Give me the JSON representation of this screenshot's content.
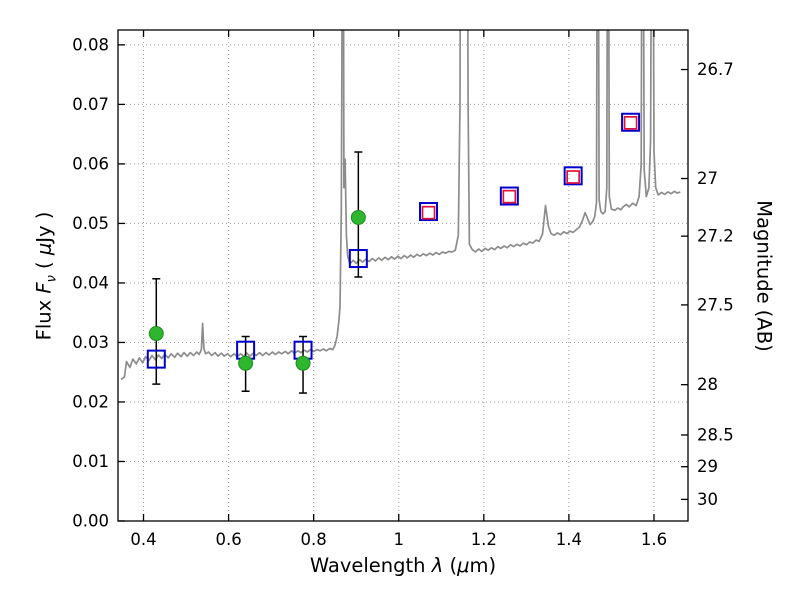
{
  "figure": {
    "background": "#ffffff",
    "xlabel": {
      "pre": "Wavelength ",
      "lambda": "λ",
      "mid": " (",
      "mu": "μ",
      "post": "m)"
    },
    "ylabel_left": {
      "pre": "Flux ",
      "f": "F",
      "sub": "ν",
      "mid": " ( ",
      "mu": "μ",
      "post": "Jy )"
    },
    "ylabel_right": "Magnitude (AB)"
  },
  "axes": {
    "xlim": [
      0.34,
      1.68
    ],
    "ylim": [
      0.0,
      0.0825
    ],
    "xticks": [
      0.4,
      0.6,
      0.8,
      1.0,
      1.2,
      1.4,
      1.6
    ],
    "xtick_labels": [
      "0.4",
      "0.6",
      "0.8",
      "1",
      "1.2",
      "1.4",
      "1.6"
    ],
    "yticks": [
      0.0,
      0.01,
      0.02,
      0.03,
      0.04,
      0.05,
      0.06,
      0.07,
      0.08
    ],
    "ytick_labels": [
      "0.00",
      "0.01",
      "0.02",
      "0.03",
      "0.04",
      "0.05",
      "0.06",
      "0.07",
      "0.08"
    ],
    "right_axis": {
      "tick_mags": [
        26.7,
        27,
        27.2,
        27.5,
        28,
        28.5,
        29,
        30
      ],
      "tick_labels": [
        "26.7",
        "27",
        "27.2",
        "27.5",
        "28",
        "28.5",
        "29",
        "30"
      ],
      "ab_zeropoint_ujy": 23.9
    },
    "grid": {
      "color": "#9a9a9a",
      "style": "dotted"
    },
    "frame_color": "#000000"
  },
  "chart_data": {
    "type": "line",
    "title": "",
    "xlabel": "Wavelength λ (μm)",
    "ylabel": "Flux Fν ( μJy )",
    "ylabel_right": "Magnitude (AB)",
    "xlim": [
      0.34,
      1.68
    ],
    "ylim": [
      0.0,
      0.0825
    ],
    "grid": true,
    "legend": false,
    "series": [
      {
        "name": "model spectrum",
        "type": "line",
        "color": "#8c8c8c",
        "points": [
          [
            0.347,
            0.0238
          ],
          [
            0.355,
            0.0242
          ],
          [
            0.36,
            0.0268
          ],
          [
            0.368,
            0.0258
          ],
          [
            0.375,
            0.0272
          ],
          [
            0.383,
            0.0264
          ],
          [
            0.39,
            0.0274
          ],
          [
            0.398,
            0.0266
          ],
          [
            0.405,
            0.0276
          ],
          [
            0.413,
            0.027
          ],
          [
            0.42,
            0.0278
          ],
          [
            0.428,
            0.0271
          ],
          [
            0.435,
            0.0279
          ],
          [
            0.443,
            0.0273
          ],
          [
            0.45,
            0.028
          ],
          [
            0.458,
            0.0274
          ],
          [
            0.465,
            0.0281
          ],
          [
            0.473,
            0.0275
          ],
          [
            0.48,
            0.0282
          ],
          [
            0.488,
            0.0276
          ],
          [
            0.495,
            0.0283
          ],
          [
            0.503,
            0.0277
          ],
          [
            0.51,
            0.0283
          ],
          [
            0.518,
            0.0278
          ],
          [
            0.525,
            0.0284
          ],
          [
            0.531,
            0.028
          ],
          [
            0.536,
            0.0288
          ],
          [
            0.539,
            0.0332
          ],
          [
            0.542,
            0.029
          ],
          [
            0.546,
            0.0281
          ],
          [
            0.553,
            0.0284
          ],
          [
            0.56,
            0.0278
          ],
          [
            0.568,
            0.0283
          ],
          [
            0.575,
            0.0277
          ],
          [
            0.583,
            0.0282
          ],
          [
            0.59,
            0.0277
          ],
          [
            0.598,
            0.0281
          ],
          [
            0.605,
            0.0276
          ],
          [
            0.613,
            0.0281
          ],
          [
            0.62,
            0.0276
          ],
          [
            0.628,
            0.0281
          ],
          [
            0.635,
            0.0277
          ],
          [
            0.643,
            0.0282
          ],
          [
            0.65,
            0.0277
          ],
          [
            0.658,
            0.0282
          ],
          [
            0.665,
            0.0278
          ],
          [
            0.673,
            0.0283
          ],
          [
            0.68,
            0.0278
          ],
          [
            0.688,
            0.0283
          ],
          [
            0.695,
            0.0279
          ],
          [
            0.703,
            0.0284
          ],
          [
            0.71,
            0.028
          ],
          [
            0.718,
            0.0284
          ],
          [
            0.725,
            0.0281
          ],
          [
            0.733,
            0.0285
          ],
          [
            0.74,
            0.0281
          ],
          [
            0.748,
            0.0286
          ],
          [
            0.755,
            0.0282
          ],
          [
            0.763,
            0.0286
          ],
          [
            0.77,
            0.0283
          ],
          [
            0.778,
            0.0287
          ],
          [
            0.785,
            0.0284
          ],
          [
            0.793,
            0.0288
          ],
          [
            0.8,
            0.0285
          ],
          [
            0.808,
            0.0288
          ],
          [
            0.815,
            0.0286
          ],
          [
            0.823,
            0.0289
          ],
          [
            0.83,
            0.0286
          ],
          [
            0.838,
            0.029
          ],
          [
            0.845,
            0.0288
          ],
          [
            0.85,
            0.0295
          ],
          [
            0.855,
            0.031
          ],
          [
            0.859,
            0.0335
          ],
          [
            0.862,
            0.036
          ],
          [
            0.865,
            0.052
          ],
          [
            0.867,
            0.09
          ],
          [
            0.869,
            0.14
          ],
          [
            0.871,
            0.056
          ],
          [
            0.874,
            0.0608
          ],
          [
            0.877,
            0.048
          ],
          [
            0.88,
            0.0445
          ],
          [
            0.885,
            0.0432
          ],
          [
            0.893,
            0.0438
          ],
          [
            0.9,
            0.0433
          ],
          [
            0.908,
            0.0439
          ],
          [
            0.915,
            0.0435
          ],
          [
            0.923,
            0.044
          ],
          [
            0.93,
            0.0436
          ],
          [
            0.938,
            0.0441
          ],
          [
            0.945,
            0.0437
          ],
          [
            0.953,
            0.0442
          ],
          [
            0.96,
            0.0438
          ],
          [
            0.968,
            0.0443
          ],
          [
            0.975,
            0.0439
          ],
          [
            0.983,
            0.0444
          ],
          [
            0.99,
            0.044
          ],
          [
            0.998,
            0.0445
          ],
          [
            1.005,
            0.0441
          ],
          [
            1.013,
            0.0446
          ],
          [
            1.02,
            0.0442
          ],
          [
            1.028,
            0.0447
          ],
          [
            1.035,
            0.0443
          ],
          [
            1.043,
            0.0448
          ],
          [
            1.05,
            0.0445
          ],
          [
            1.058,
            0.0449
          ],
          [
            1.065,
            0.0446
          ],
          [
            1.073,
            0.045
          ],
          [
            1.08,
            0.0447
          ],
          [
            1.088,
            0.0451
          ],
          [
            1.095,
            0.0448
          ],
          [
            1.103,
            0.0452
          ],
          [
            1.11,
            0.045
          ],
          [
            1.118,
            0.0453
          ],
          [
            1.125,
            0.0452
          ],
          [
            1.133,
            0.0455
          ],
          [
            1.14,
            0.048
          ],
          [
            1.144,
            0.07
          ],
          [
            1.146,
            0.14
          ],
          [
            1.16,
            0.14
          ],
          [
            1.163,
            0.07
          ],
          [
            1.166,
            0.0465
          ],
          [
            1.173,
            0.0456
          ],
          [
            1.18,
            0.0452
          ],
          [
            1.188,
            0.0457
          ],
          [
            1.195,
            0.0453
          ],
          [
            1.203,
            0.0458
          ],
          [
            1.21,
            0.0455
          ],
          [
            1.218,
            0.0459
          ],
          [
            1.225,
            0.0456
          ],
          [
            1.233,
            0.0461
          ],
          [
            1.24,
            0.0458
          ],
          [
            1.248,
            0.0462
          ],
          [
            1.255,
            0.0459
          ],
          [
            1.263,
            0.0464
          ],
          [
            1.27,
            0.0461
          ],
          [
            1.278,
            0.0465
          ],
          [
            1.285,
            0.0462
          ],
          [
            1.293,
            0.0467
          ],
          [
            1.3,
            0.0464
          ],
          [
            1.308,
            0.0469
          ],
          [
            1.315,
            0.0467
          ],
          [
            1.323,
            0.0472
          ],
          [
            1.33,
            0.047
          ],
          [
            1.338,
            0.0482
          ],
          [
            1.345,
            0.053
          ],
          [
            1.352,
            0.0495
          ],
          [
            1.358,
            0.0483
          ],
          [
            1.365,
            0.048
          ],
          [
            1.373,
            0.0484
          ],
          [
            1.38,
            0.0481
          ],
          [
            1.388,
            0.0486
          ],
          [
            1.395,
            0.0483
          ],
          [
            1.403,
            0.0487
          ],
          [
            1.41,
            0.0485
          ],
          [
            1.418,
            0.049
          ],
          [
            1.425,
            0.0494
          ],
          [
            1.432,
            0.0505
          ],
          [
            1.438,
            0.0518
          ],
          [
            1.444,
            0.0508
          ],
          [
            1.45,
            0.0498
          ],
          [
            1.456,
            0.0503
          ],
          [
            1.461,
            0.0512
          ],
          [
            1.465,
            0.0535
          ],
          [
            1.468,
            0.14
          ],
          [
            1.471,
            0.054
          ],
          [
            1.475,
            0.052
          ],
          [
            1.48,
            0.0516
          ],
          [
            1.485,
            0.052
          ],
          [
            1.489,
            0.056
          ],
          [
            1.492,
            0.14
          ],
          [
            1.495,
            0.0545
          ],
          [
            1.5,
            0.0524
          ],
          [
            1.508,
            0.0522
          ],
          [
            1.515,
            0.0526
          ],
          [
            1.522,
            0.0523
          ],
          [
            1.528,
            0.0528
          ],
          [
            1.535,
            0.0532
          ],
          [
            1.542,
            0.0528
          ],
          [
            1.55,
            0.0534
          ],
          [
            1.558,
            0.053
          ],
          [
            1.565,
            0.0545
          ],
          [
            1.57,
            0.06
          ],
          [
            1.573,
            0.14
          ],
          [
            1.577,
            0.059
          ],
          [
            1.582,
            0.0545
          ],
          [
            1.588,
            0.056
          ],
          [
            1.592,
            0.064
          ],
          [
            1.596,
            0.14
          ],
          [
            1.6,
            0.062
          ],
          [
            1.604,
            0.056
          ],
          [
            1.61,
            0.0548
          ],
          [
            1.618,
            0.0552
          ],
          [
            1.625,
            0.0549
          ],
          [
            1.633,
            0.0553
          ],
          [
            1.64,
            0.055
          ],
          [
            1.648,
            0.0554
          ],
          [
            1.655,
            0.0551
          ],
          [
            1.662,
            0.0553
          ]
        ]
      },
      {
        "name": "observed photometry (optical, filled circles with error bars)",
        "type": "scatter",
        "marker": "filled-circle",
        "color": "#2fb62f",
        "edge_color": "#1f8c1f",
        "error_color": "#000000",
        "points": [
          {
            "x": 0.43,
            "y": 0.0315,
            "err_lo": 0.0085,
            "err_hi": 0.0092
          },
          {
            "x": 0.64,
            "y": 0.0265,
            "err_lo": 0.0047,
            "err_hi": 0.0045
          },
          {
            "x": 0.775,
            "y": 0.0265,
            "err_lo": 0.005,
            "err_hi": 0.0045
          },
          {
            "x": 0.905,
            "y": 0.051,
            "err_lo": 0.01,
            "err_hi": 0.011
          }
        ]
      },
      {
        "name": "model photometry (open blue squares)",
        "type": "scatter",
        "marker": "open-square",
        "color": "#0000cd",
        "points": [
          {
            "x": 0.43,
            "y": 0.0272
          },
          {
            "x": 0.64,
            "y": 0.0287
          },
          {
            "x": 0.775,
            "y": 0.0287
          },
          {
            "x": 0.905,
            "y": 0.0441
          },
          {
            "x": 1.07,
            "y": 0.052
          },
          {
            "x": 1.26,
            "y": 0.0546
          },
          {
            "x": 1.41,
            "y": 0.058
          },
          {
            "x": 1.545,
            "y": 0.067
          }
        ]
      },
      {
        "name": "observed photometry (NIR, open red squares)",
        "type": "scatter",
        "marker": "open-square",
        "color": "#dc143c",
        "points": [
          {
            "x": 1.07,
            "y": 0.0518
          },
          {
            "x": 1.26,
            "y": 0.0545
          },
          {
            "x": 1.41,
            "y": 0.0578
          },
          {
            "x": 1.545,
            "y": 0.0669
          }
        ]
      }
    ]
  }
}
